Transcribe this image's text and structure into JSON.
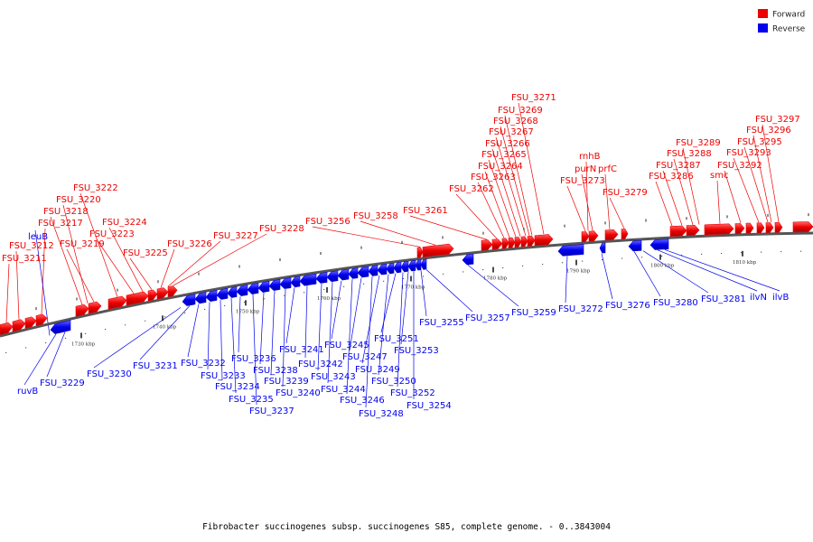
{
  "caption": "Fibrobacter succinogenes subsp. succinogenes S85, complete genome. - 0..3843004",
  "legend": [
    {
      "label": "Forward",
      "color": "#ee0000"
    },
    {
      "label": "Reverse",
      "color": "#0000ee"
    }
  ],
  "colors": {
    "forward": "#ee0000",
    "reverse": "#0000ee",
    "backbone": "#777777"
  },
  "scale_labels": [
    "1730 kbp",
    "1740 kbp",
    "1750 kbp",
    "1760 kbp",
    "1770 kbp",
    "1780 kbp",
    "1790 kbp",
    "1800 kbp",
    "1810 kbp"
  ],
  "forward_genes": [
    "FSU_3211",
    "FSU_3212",
    "FSU_3217",
    "FSU_3218",
    "FSU_3219",
    "FSU_3220",
    "FSU_3222",
    "FSU_3223",
    "FSU_3224",
    "FSU_3225",
    "FSU_3226",
    "FSU_3227",
    "FSU_3228",
    "FSU_3256",
    "FSU_3258",
    "FSU_3261",
    "FSU_3262",
    "FSU_3263",
    "FSU_3264",
    "FSU_3265",
    "FSU_3266",
    "FSU_3267",
    "FSU_3268",
    "FSU_3269",
    "FSU_3271",
    "FSU_3273",
    "purN",
    "rnhB",
    "prfC",
    "FSU_3279",
    "FSU_3286",
    "FSU_3287",
    "FSU_3288",
    "FSU_3289",
    "smc",
    "FSU_3292",
    "FSU_3293",
    "FSU_3295",
    "FSU_3296",
    "FSU_3297"
  ],
  "reverse_genes": [
    "leuB",
    "ruvB",
    "FSU_3229",
    "FSU_3230",
    "FSU_3231",
    "FSU_3232",
    "FSU_3233",
    "FSU_3234",
    "FSU_3235",
    "FSU_3236",
    "FSU_3237",
    "FSU_3238",
    "FSU_3239",
    "FSU_3240",
    "FSU_3241",
    "FSU_3242",
    "FSU_3243",
    "FSU_3244",
    "FSU_3245",
    "FSU_3246",
    "FSU_3247",
    "FSU_3248",
    "FSU_3249",
    "FSU_3250",
    "FSU_3251",
    "FSU_3252",
    "FSU_3253",
    "FSU_3254",
    "FSU_3255",
    "FSU_3257",
    "FSU_3259",
    "FSU_3272",
    "FSU_3276",
    "FSU_3280",
    "FSU_3281",
    "ilvN",
    "ilvB"
  ]
}
